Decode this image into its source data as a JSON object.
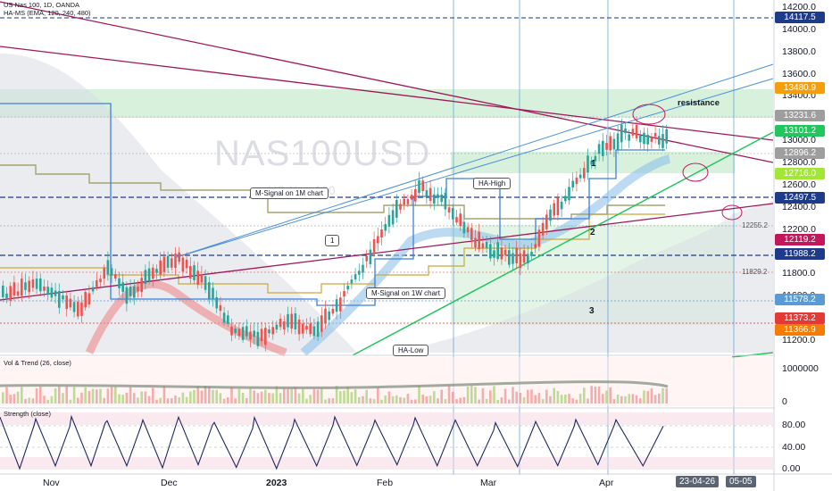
{
  "symbol_line": "US Nas 100, 1D, OANDA",
  "indicator_line": "HA-MS (EMA, 120, 240, 480)",
  "watermark": "NAS100USD",
  "watermark_sub": "US Nas 100",
  "vol_pane_title": "Vol & Trend (26, close)",
  "strength_pane_title": "Strength (close)",
  "price_axis": [
    "14200.0",
    "14000.0",
    "13800.0",
    "13600.0",
    "13400.0",
    "13200.0",
    "13000.0",
    "12800.0",
    "12600.0",
    "12400.0",
    "12200.0",
    "12000.0",
    "11800.0",
    "11600.0",
    "11400.0",
    "11200.0"
  ],
  "price_tags": [
    {
      "label": "14117.5",
      "color": "#1e3a8a",
      "price": 14117.5
    },
    {
      "label": "13480.9",
      "color": "#f59e0b",
      "price": 13480.9
    },
    {
      "label": "13231.6",
      "color": "#9e9e9e",
      "price": 13231.6
    },
    {
      "label": "13101.2",
      "color": "#22c55e",
      "price": 13101.2
    },
    {
      "label": "12896.2",
      "color": "#9e9e9e",
      "price": 12896.2
    },
    {
      "label": "12716.0",
      "color": "#a3e635",
      "price": 12716.0
    },
    {
      "label": "12497.5",
      "color": "#1e3a8a",
      "price": 12497.5
    },
    {
      "label": "12119.2",
      "color": "#c2185b",
      "price": 12119.2
    },
    {
      "label": "11988.2",
      "color": "#1e3a8a",
      "price": 11988.2
    },
    {
      "label": "11578.2",
      "color": "#5b9bd5",
      "price": 11578.2
    },
    {
      "label": "11373.2",
      "color": "#e53935",
      "price": 11373.2
    },
    {
      "label": "11366.9",
      "color": "#f57c00",
      "price": 11366.9
    }
  ],
  "vol_axis": [
    "1000000",
    "0"
  ],
  "strength_axis": [
    "80.00",
    "40.00",
    "0.00"
  ],
  "time_axis": [
    "Nov",
    "Dec",
    "2023",
    "Feb",
    "Mar",
    "Apr"
  ],
  "date_badge": "23-04-26",
  "time_badge": "05-05",
  "annotations": {
    "m_signal_1m": "M-Signal on 1M chart",
    "m_signal_1w": "M-Signal on 1W chart",
    "ha_high": "HA-High",
    "ha_low": "HA-Low",
    "resistance": "resistance",
    "box_1": "1",
    "num_1": "1",
    "num_2": "2",
    "num_3": "3",
    "level_12255": "12255.2",
    "level_11829": "11829.2"
  },
  "colors": {
    "green_zone": "#a5d6a7",
    "trend_purple": "#a0185b",
    "trend_green": "#22c55e",
    "channel_blue": "#4a90d9",
    "candle_up": "#26a69a",
    "candle_down": "#ef5350"
  }
}
